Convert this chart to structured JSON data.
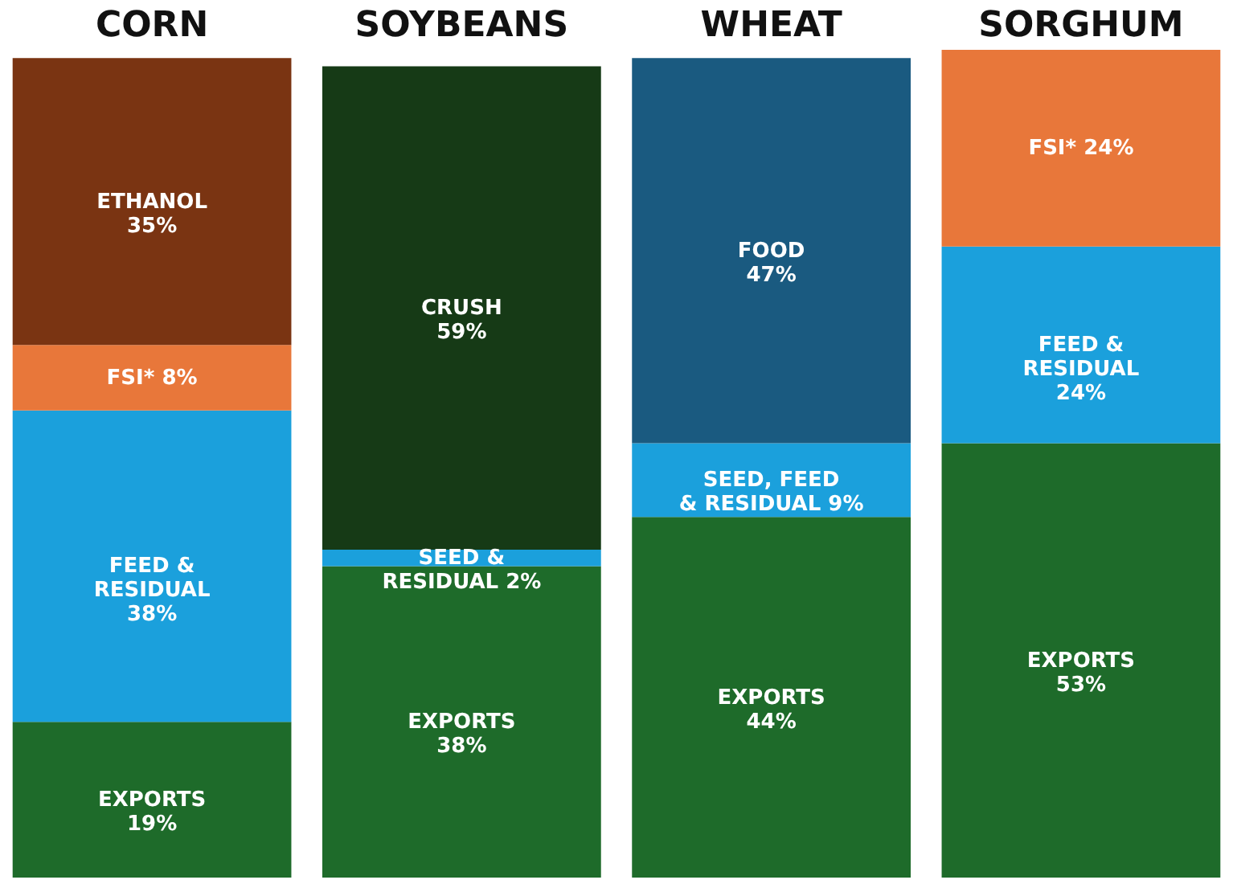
{
  "chart_data": {
    "type": "bar",
    "stacked": true,
    "categories": [
      "CORN",
      "SOYBEANS",
      "WHEAT",
      "SORGHUM"
    ],
    "ylim": [
      0,
      101
    ],
    "tick_labels": "x",
    "grid": false,
    "legend": false,
    "series": [
      {
        "color": "#1e6b2a",
        "values": [
          19,
          38,
          44,
          53
        ],
        "value_labels": [
          "EXPORTS\n19%",
          "EXPORTS\n38%",
          "EXPORTS\n44%",
          "EXPORTS\n53%"
        ]
      },
      {
        "color": "#1ba0dc",
        "values": [
          38,
          2,
          9,
          24
        ],
        "value_labels": [
          "FEED &\nRESIDUAL\n38%",
          "SEED &\nRESIDUAL 2%",
          "SEED, FEED\n& RESIDUAL 9%",
          "FEED &\nRESIDUAL\n24%"
        ]
      },
      {
        "color": "#e8773a",
        "values": [
          8,
          null,
          null,
          24
        ],
        "value_labels": [
          "FSI* 8%",
          null,
          null,
          "FSI* 24%"
        ]
      },
      {
        "color": "#7a3412",
        "values": [
          35,
          null,
          null,
          null
        ],
        "value_labels": [
          "ETHANOL\n35%",
          null,
          null,
          null
        ]
      },
      {
        "color": "#163a16",
        "values": [
          null,
          59,
          null,
          null
        ],
        "value_labels": [
          null,
          "CRUSH\n59%",
          null,
          null
        ]
      },
      {
        "color": "#1a5a80",
        "values": [
          null,
          null,
          47,
          null
        ],
        "value_labels": [
          null,
          null,
          "FOOD\n47%",
          null
        ]
      }
    ]
  }
}
